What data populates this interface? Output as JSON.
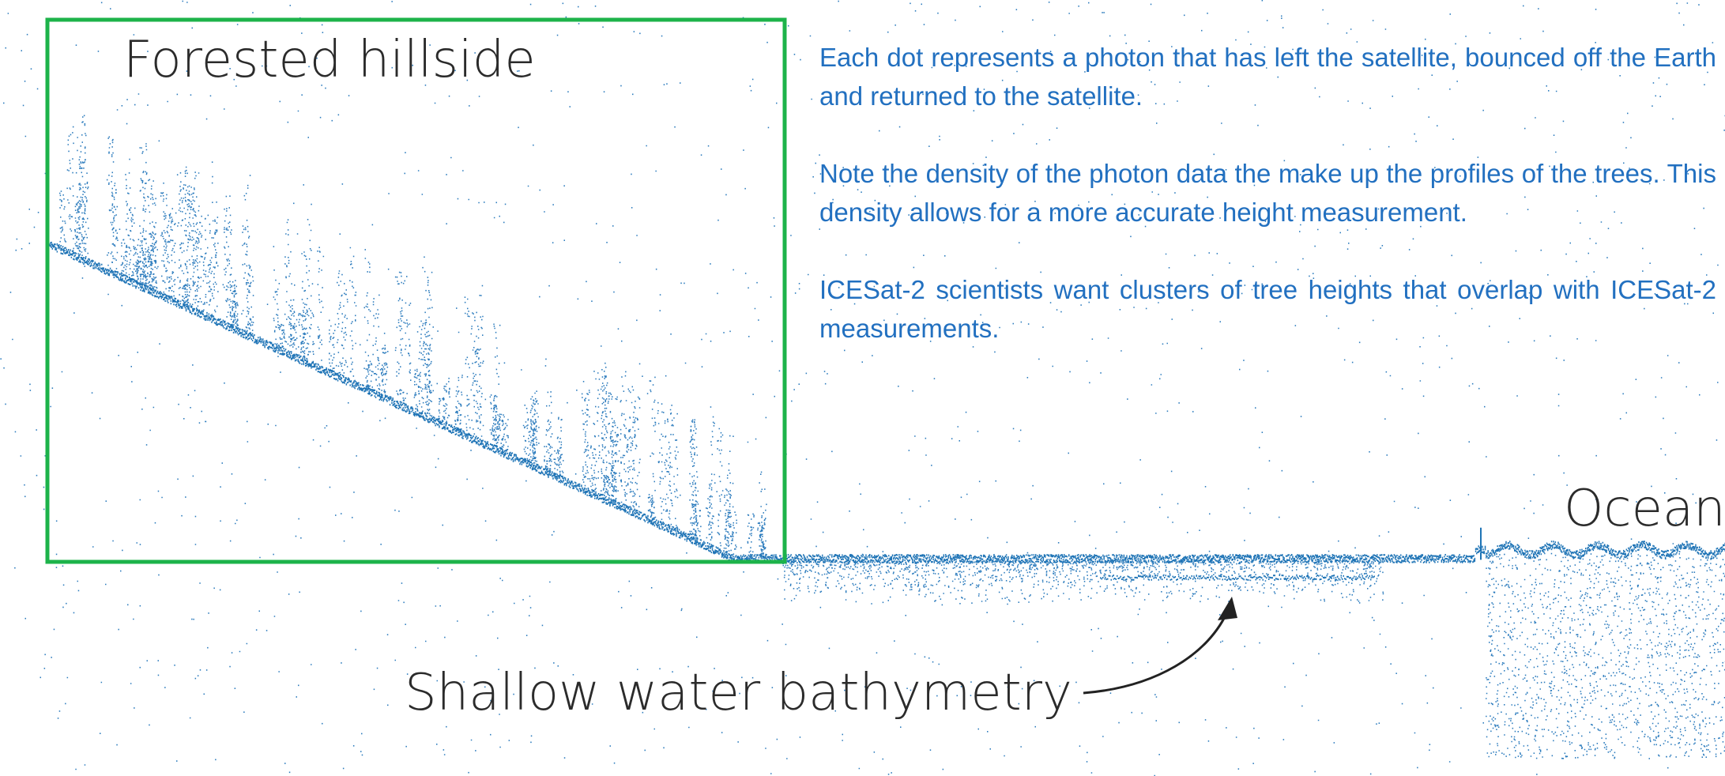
{
  "labels": {
    "forest": "Forested hillside",
    "ocean": "Ocean",
    "bathymetry": "Shallow water bathymetry"
  },
  "notes": [
    "Each dot represents a photon that has left the satellite, bounced off the Earth and returned to the satellite.",
    "Note the density of the photon data the make up the profiles of the trees. This density allows for a more accurate height measurement.",
    "ICESat-2 scientists want clusters of tree heights that overlap with ICESat-2 measurements."
  ]
}
